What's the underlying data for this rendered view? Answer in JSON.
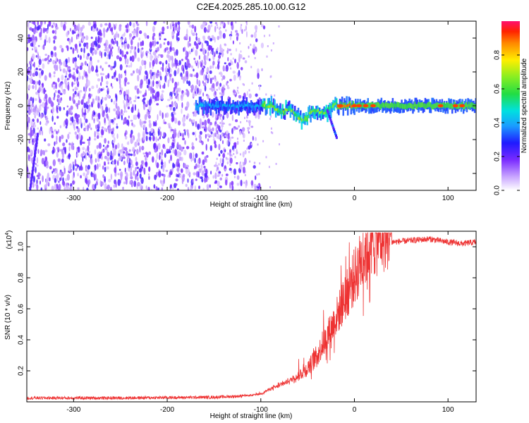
{
  "title": "C2E4.2025.285.10.00.G12",
  "chart_data": [
    {
      "type": "heatmap",
      "title": "C2E4.2025.285.10.00.G12",
      "xlabel": "Height of straight line (km)",
      "ylabel": "Frequency (Hz)",
      "xlim": [
        -350,
        130
      ],
      "ylim": [
        -50,
        50
      ],
      "xticks": [
        -300,
        -200,
        -100,
        0,
        100
      ],
      "yticks": [
        -40,
        -20,
        0,
        20,
        40
      ],
      "xtick_labels": [
        "-300",
        "-200",
        "-100",
        "0",
        "100"
      ],
      "ytick_labels": [
        "-40",
        "-20",
        "0",
        "20",
        "40"
      ],
      "colorbar": {
        "label": "Normalized spectral amplitude",
        "range": [
          0,
          1
        ],
        "ticks": [
          0.0,
          0.2,
          0.4,
          0.6,
          0.8
        ],
        "tick_labels": [
          "0.0",
          "0.2",
          "0.4",
          "0.6",
          "0.8"
        ]
      },
      "features": {
        "noise_region_x": [
          -350,
          -100
        ],
        "noise_fade_x": [
          -150,
          -95
        ],
        "signal_start_x": -170,
        "signal_center_freq": 0,
        "signal_dip_x": [
          -90,
          -20
        ],
        "signal_dip_freq": [
          0,
          -10
        ],
        "streak_x": [
          -30,
          -20
        ],
        "streak_freq": [
          -2,
          -18
        ]
      }
    },
    {
      "type": "line",
      "xlabel": "Height of straight line (km)",
      "ylabel": "SNR (10 * v/v)",
      "multiplier_label": "(x10",
      "multiplier_exp": "4",
      "multiplier_close": ")",
      "xlim": [
        -350,
        130
      ],
      "ylim": [
        0,
        1.1
      ],
      "xticks": [
        -300,
        -200,
        -100,
        0,
        100
      ],
      "yticks": [
        0.2,
        0.4,
        0.6,
        0.8,
        1.0
      ],
      "xtick_labels": [
        "-300",
        "-200",
        "-100",
        "0",
        "100"
      ],
      "ytick_labels": [
        "0.2",
        "0.4",
        "0.6",
        "0.8",
        "1.0"
      ],
      "color": "#ee3333",
      "series": [
        {
          "name": "SNR",
          "x": [
            -350,
            -250,
            -150,
            -110,
            -100,
            -90,
            -80,
            -70,
            -60,
            -50,
            -40,
            -30,
            -20,
            -10,
            0,
            10,
            20,
            30,
            40,
            60,
            80,
            100,
            115,
            130
          ],
          "y": [
            0.025,
            0.025,
            0.03,
            0.04,
            0.05,
            0.08,
            0.1,
            0.13,
            0.16,
            0.2,
            0.28,
            0.38,
            0.5,
            0.62,
            0.75,
            0.88,
            0.96,
            1.0,
            1.03,
            1.04,
            1.05,
            1.03,
            1.02,
            1.03
          ]
        }
      ]
    }
  ]
}
